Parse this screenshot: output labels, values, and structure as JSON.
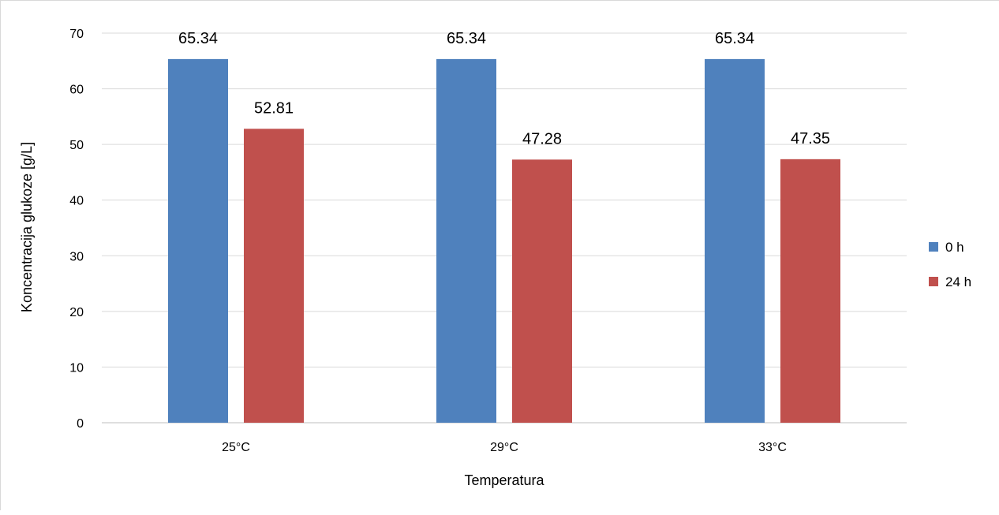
{
  "chart_data": {
    "type": "bar",
    "categories": [
      "25°C",
      "29°C",
      "33°C"
    ],
    "series": [
      {
        "name": "0 h",
        "values": [
          65.34,
          65.34,
          65.34
        ],
        "color": "#4f81bd"
      },
      {
        "name": "24 h",
        "values": [
          52.81,
          47.28,
          47.35
        ],
        "color": "#c0504d"
      }
    ],
    "data_labels": [
      [
        "65.34",
        "65.34",
        "65.34"
      ],
      [
        "52.81",
        "47.28",
        "47.35"
      ]
    ],
    "title": "",
    "xlabel": "Temperatura",
    "ylabel": "Koncentracija glukoze  [g/L]",
    "ylim": [
      0,
      70
    ],
    "yticks": [
      "0",
      "10",
      "20",
      "30",
      "40",
      "50",
      "60",
      "70"
    ],
    "grid": true,
    "legend_position": "right"
  }
}
